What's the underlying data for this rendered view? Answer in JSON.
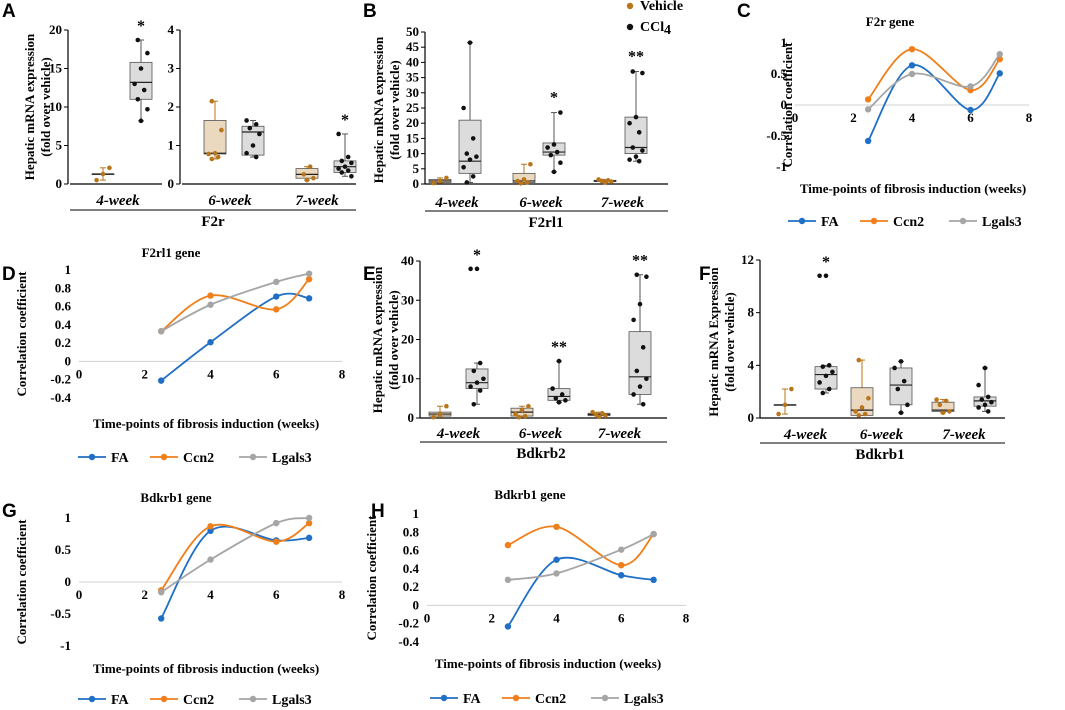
{
  "figure_legend": {
    "vehicle": "Vehicle",
    "ccl4": "CCl",
    "ccl4_sub": "4"
  },
  "colors": {
    "FA": "#1f6fc6",
    "Ccn2": "#f07f1a",
    "Lgals3": "#a5a5a5",
    "vehicle_dot": "#b8751c",
    "ccl4_dot": "#111111",
    "box_fill": "#dcdcdc",
    "box_line": "#555555"
  },
  "chart_data": [
    {
      "panel": "A",
      "type": "box",
      "gene": "F2r",
      "ylabel_lines": [
        "Hepatic mRNA expression",
        "(fold over vehicle)"
      ],
      "groups": [
        {
          "label": "4-week",
          "ylim": [
            0,
            20
          ],
          "ticks": [
            0,
            5,
            10,
            15,
            20
          ],
          "vehicle": {
            "min": 0.5,
            "q1": 1.3,
            "median": 1.3,
            "q3": 1.3,
            "max": 2.1,
            "points": [
              0.5,
              1.3,
              2.1
            ]
          },
          "ccl4": {
            "min": 8.2,
            "q1": 11.0,
            "median": 13.2,
            "q3": 15.8,
            "max": 18.7,
            "points": [
              8.2,
              9.7,
              11.0,
              12.2,
              13.0,
              15.0,
              17.0,
              18.7
            ]
          },
          "sig": "*"
        },
        {
          "label": "6-week",
          "ylim": [
            0,
            4
          ],
          "ticks": [
            0,
            1,
            2,
            3,
            4
          ],
          "vehicle": {
            "min": 0.65,
            "q1": 0.78,
            "median": 0.8,
            "q3": 1.65,
            "max": 2.15,
            "points": [
              0.65,
              0.7,
              0.78,
              0.8,
              1.4,
              2.15
            ]
          },
          "ccl4": {
            "min": 0.7,
            "q1": 0.75,
            "median": 1.35,
            "q3": 1.5,
            "max": 1.65,
            "points": [
              0.7,
              0.8,
              1.0,
              1.3,
              1.45,
              1.55,
              1.65
            ]
          },
          "sig": ""
        },
        {
          "label": "7-week",
          "ylim": [
            0,
            4
          ],
          "ticks": [
            0,
            1,
            2,
            3,
            4
          ],
          "vehicle": {
            "min": 0.1,
            "q1": 0.15,
            "median": 0.25,
            "q3": 0.4,
            "max": 0.45,
            "points": [
              0.1,
              0.15,
              0.25,
              0.45
            ]
          },
          "ccl4": {
            "min": 0.2,
            "q1": 0.3,
            "median": 0.45,
            "q3": 0.6,
            "max": 1.3,
            "points": [
              0.2,
              0.3,
              0.35,
              0.4,
              0.45,
              0.55,
              0.6,
              0.7,
              1.3
            ]
          },
          "sig": "*"
        }
      ]
    },
    {
      "panel": "B",
      "type": "box",
      "gene": "F2rl1",
      "ylabel_lines": [
        "Hepatic mRNA expression",
        "(fold over vehicle)"
      ],
      "ylim": [
        0,
        50
      ],
      "ticks": [
        0,
        5,
        10,
        15,
        20,
        25,
        30,
        35,
        40,
        45,
        50
      ],
      "groups": [
        {
          "label": "4-week",
          "vehicle": {
            "min": 0.3,
            "q1": 0.5,
            "median": 1.0,
            "q3": 1.5,
            "max": 2.0,
            "points": [
              0.3,
              1.0,
              2.0
            ]
          },
          "ccl4": {
            "min": 0.5,
            "q1": 3.5,
            "median": 7.5,
            "q3": 21.0,
            "max": 46.5,
            "points": [
              0.5,
              2.5,
              5.5,
              8.0,
              9.0,
              10.0,
              15.0,
              25.0,
              46.5
            ]
          },
          "sig": ""
        },
        {
          "label": "6-week",
          "vehicle": {
            "min": 0.2,
            "q1": 0.5,
            "median": 1.0,
            "q3": 3.5,
            "max": 6.5,
            "points": [
              0.2,
              0.5,
              1.0,
              1.5,
              6.5
            ]
          },
          "ccl4": {
            "min": 4.0,
            "q1": 9.5,
            "median": 10.5,
            "q3": 13.5,
            "max": 23.5,
            "points": [
              4.0,
              7.0,
              9.5,
              10.5,
              12.0,
              13.0,
              23.5
            ]
          },
          "sig": "*"
        },
        {
          "label": "7-week",
          "vehicle": {
            "min": 0.5,
            "q1": 0.8,
            "median": 1.0,
            "q3": 1.2,
            "max": 1.5,
            "points": [
              0.5,
              0.8,
              1.0,
              1.2,
              1.5
            ]
          },
          "ccl4": {
            "min": 7.5,
            "q1": 10.0,
            "median": 12.0,
            "q3": 22.0,
            "max": 37.0,
            "points": [
              7.5,
              8.0,
              9.0,
              11.0,
              12.0,
              17.0,
              20.0,
              22.0,
              36.5,
              37.0
            ]
          },
          "sig": "**"
        }
      ]
    },
    {
      "panel": "C",
      "type": "line",
      "title": "F2r gene",
      "xlabel": "Time-points of fibrosis induction (weeks)",
      "ylabel": "Correlation coefficient",
      "xlim": [
        0,
        8
      ],
      "xticks": [
        0,
        2,
        4,
        6,
        8
      ],
      "ylim": [
        -1,
        1
      ],
      "yticks": [
        -1,
        -0.5,
        0,
        0.5,
        1
      ],
      "x": [
        2.5,
        4,
        6,
        7
      ],
      "series": [
        {
          "name": "FA",
          "values": [
            -0.58,
            0.64,
            -0.08,
            0.51
          ]
        },
        {
          "name": "Ccn2",
          "values": [
            0.09,
            0.9,
            0.24,
            0.74
          ]
        },
        {
          "name": "Lgals3",
          "values": [
            -0.07,
            0.5,
            0.3,
            0.82
          ]
        }
      ]
    },
    {
      "panel": "D",
      "type": "line",
      "title": "F2rl1 gene",
      "xlabel": "Time-points of fibrosis induction (weeks)",
      "ylabel": "Correlation coefficient",
      "xlim": [
        0,
        8
      ],
      "xticks": [
        0,
        2,
        4,
        6,
        8
      ],
      "ylim": [
        -0.4,
        1
      ],
      "yticks": [
        -0.4,
        -0.2,
        0,
        0.2,
        0.4,
        0.6,
        0.8,
        1
      ],
      "x": [
        2.5,
        4,
        6,
        7
      ],
      "series": [
        {
          "name": "FA",
          "values": [
            -0.21,
            0.21,
            0.71,
            0.69
          ]
        },
        {
          "name": "Ccn2",
          "values": [
            0.33,
            0.72,
            0.57,
            0.9
          ]
        },
        {
          "name": "Lgals3",
          "values": [
            0.33,
            0.62,
            0.87,
            0.96
          ]
        }
      ]
    },
    {
      "panel": "E",
      "type": "box",
      "gene": "Bdkrb2",
      "ylabel_lines": [
        "Hepatic mRNA expression",
        "(fold over vehicle)"
      ],
      "ylim": [
        0,
        40
      ],
      "ticks": [
        0,
        10,
        20,
        30,
        40
      ],
      "groups": [
        {
          "label": "4-week",
          "vehicle": {
            "min": 0.2,
            "q1": 0.5,
            "median": 1.0,
            "q3": 1.5,
            "max": 3.0,
            "points": [
              0.2,
              1.0,
              3.0
            ]
          },
          "ccl4": {
            "min": 3.5,
            "q1": 7.5,
            "median": 9.0,
            "q3": 12.5,
            "max": 14.0,
            "points": [
              3.5,
              7.0,
              8.0,
              9.0,
              10.0,
              12.0,
              14.0,
              38.0
            ]
          },
          "sig": "*"
        },
        {
          "label": "6-week",
          "vehicle": {
            "min": 0.2,
            "q1": 0.5,
            "median": 1.5,
            "q3": 2.5,
            "max": 3.0,
            "points": [
              0.2,
              0.5,
              1.0,
              2.0,
              3.0
            ]
          },
          "ccl4": {
            "min": 4.0,
            "q1": 4.5,
            "median": 5.5,
            "q3": 7.5,
            "max": 14.5,
            "points": [
              4.0,
              4.5,
              5.0,
              6.0,
              7.5,
              14.5
            ]
          },
          "sig": "**"
        },
        {
          "label": "7-week",
          "vehicle": {
            "min": 0.3,
            "q1": 0.6,
            "median": 0.9,
            "q3": 1.2,
            "max": 1.5,
            "points": [
              0.3,
              0.6,
              0.9,
              1.2,
              1.5
            ]
          },
          "ccl4": {
            "min": 3.5,
            "q1": 6.0,
            "median": 10.5,
            "q3": 22.0,
            "max": 36.5,
            "points": [
              3.5,
              6.0,
              8.0,
              10.0,
              12.0,
              18.0,
              25.0,
              29.0,
              36.0,
              36.5
            ]
          },
          "sig": "**"
        }
      ]
    },
    {
      "panel": "F",
      "type": "box",
      "gene": "Bdkrb1",
      "ylabel_lines": [
        "Hepatic mRNA Expression",
        "(fold over vehicle)"
      ],
      "ylim": [
        0,
        12
      ],
      "ticks": [
        0,
        4,
        8,
        12
      ],
      "groups": [
        {
          "label": "4-week",
          "vehicle": {
            "min": 0.3,
            "q1": 1.0,
            "median": 1.0,
            "q3": 1.0,
            "max": 2.2,
            "points": [
              0.3,
              1.0,
              2.2
            ]
          },
          "ccl4": {
            "min": 1.9,
            "q1": 2.2,
            "median": 3.3,
            "q3": 3.9,
            "max": 4.0,
            "points": [
              1.9,
              2.2,
              2.7,
              3.2,
              3.5,
              3.9,
              4.0,
              10.8
            ]
          },
          "sig": "*"
        },
        {
          "label": "6-week",
          "vehicle": {
            "min": 0.2,
            "q1": 0.2,
            "median": 0.6,
            "q3": 2.3,
            "max": 4.4,
            "points": [
              0.2,
              0.3,
              0.5,
              0.8,
              1.5,
              4.4
            ]
          },
          "ccl4": {
            "min": 0.4,
            "q1": 1.0,
            "median": 2.5,
            "q3": 3.8,
            "max": 4.3,
            "points": [
              0.4,
              1.0,
              2.2,
              2.8,
              3.8,
              4.3
            ]
          },
          "sig": ""
        },
        {
          "label": "7-week",
          "vehicle": {
            "min": 0.4,
            "q1": 0.5,
            "median": 0.6,
            "q3": 1.2,
            "max": 1.4,
            "points": [
              0.4,
              0.5,
              1.0,
              1.3,
              1.4
            ]
          },
          "ccl4": {
            "min": 0.5,
            "q1": 0.9,
            "median": 1.3,
            "q3": 1.6,
            "max": 3.8,
            "points": [
              0.5,
              0.8,
              1.0,
              1.2,
              1.4,
              1.6,
              2.5,
              3.8
            ]
          },
          "sig": ""
        }
      ]
    },
    {
      "panel": "G",
      "type": "line",
      "title": "Bdkrb1 gene",
      "xlabel": "Time-points of fibrosis induction (weeks)",
      "ylabel": "Correlation coefficient",
      "xlim": [
        0,
        8
      ],
      "xticks": [
        0,
        2,
        4,
        6,
        8
      ],
      "ylim": [
        -1,
        1
      ],
      "yticks": [
        -1,
        -0.5,
        0,
        0.5,
        1
      ],
      "x": [
        2.5,
        4,
        6,
        7
      ],
      "series": [
        {
          "name": "FA",
          "values": [
            -0.57,
            0.8,
            0.65,
            0.69
          ]
        },
        {
          "name": "Ccn2",
          "values": [
            -0.13,
            0.87,
            0.63,
            0.92
          ]
        },
        {
          "name": "Lgals3",
          "values": [
            -0.16,
            0.35,
            0.92,
            1.0
          ]
        }
      ]
    },
    {
      "panel": "H",
      "type": "line",
      "title": "Bdkrb1 gene",
      "xlabel": "Time-points of fibrosis induction (weeks)",
      "ylabel": "Correlation coefficient",
      "xlim": [
        0,
        8
      ],
      "xticks": [
        0,
        2,
        4,
        6,
        8
      ],
      "ylim": [
        -0.4,
        1
      ],
      "yticks": [
        -0.4,
        -0.2,
        0,
        0.2,
        0.4,
        0.6,
        0.8,
        1
      ],
      "x": [
        2.5,
        4,
        6,
        7
      ],
      "series": [
        {
          "name": "FA",
          "values": [
            -0.23,
            0.5,
            0.33,
            0.28
          ]
        },
        {
          "name": "Ccn2",
          "values": [
            0.66,
            0.86,
            0.44,
            0.78
          ]
        },
        {
          "name": "Lgals3",
          "values": [
            0.28,
            0.35,
            0.61,
            0.78
          ]
        }
      ]
    }
  ]
}
